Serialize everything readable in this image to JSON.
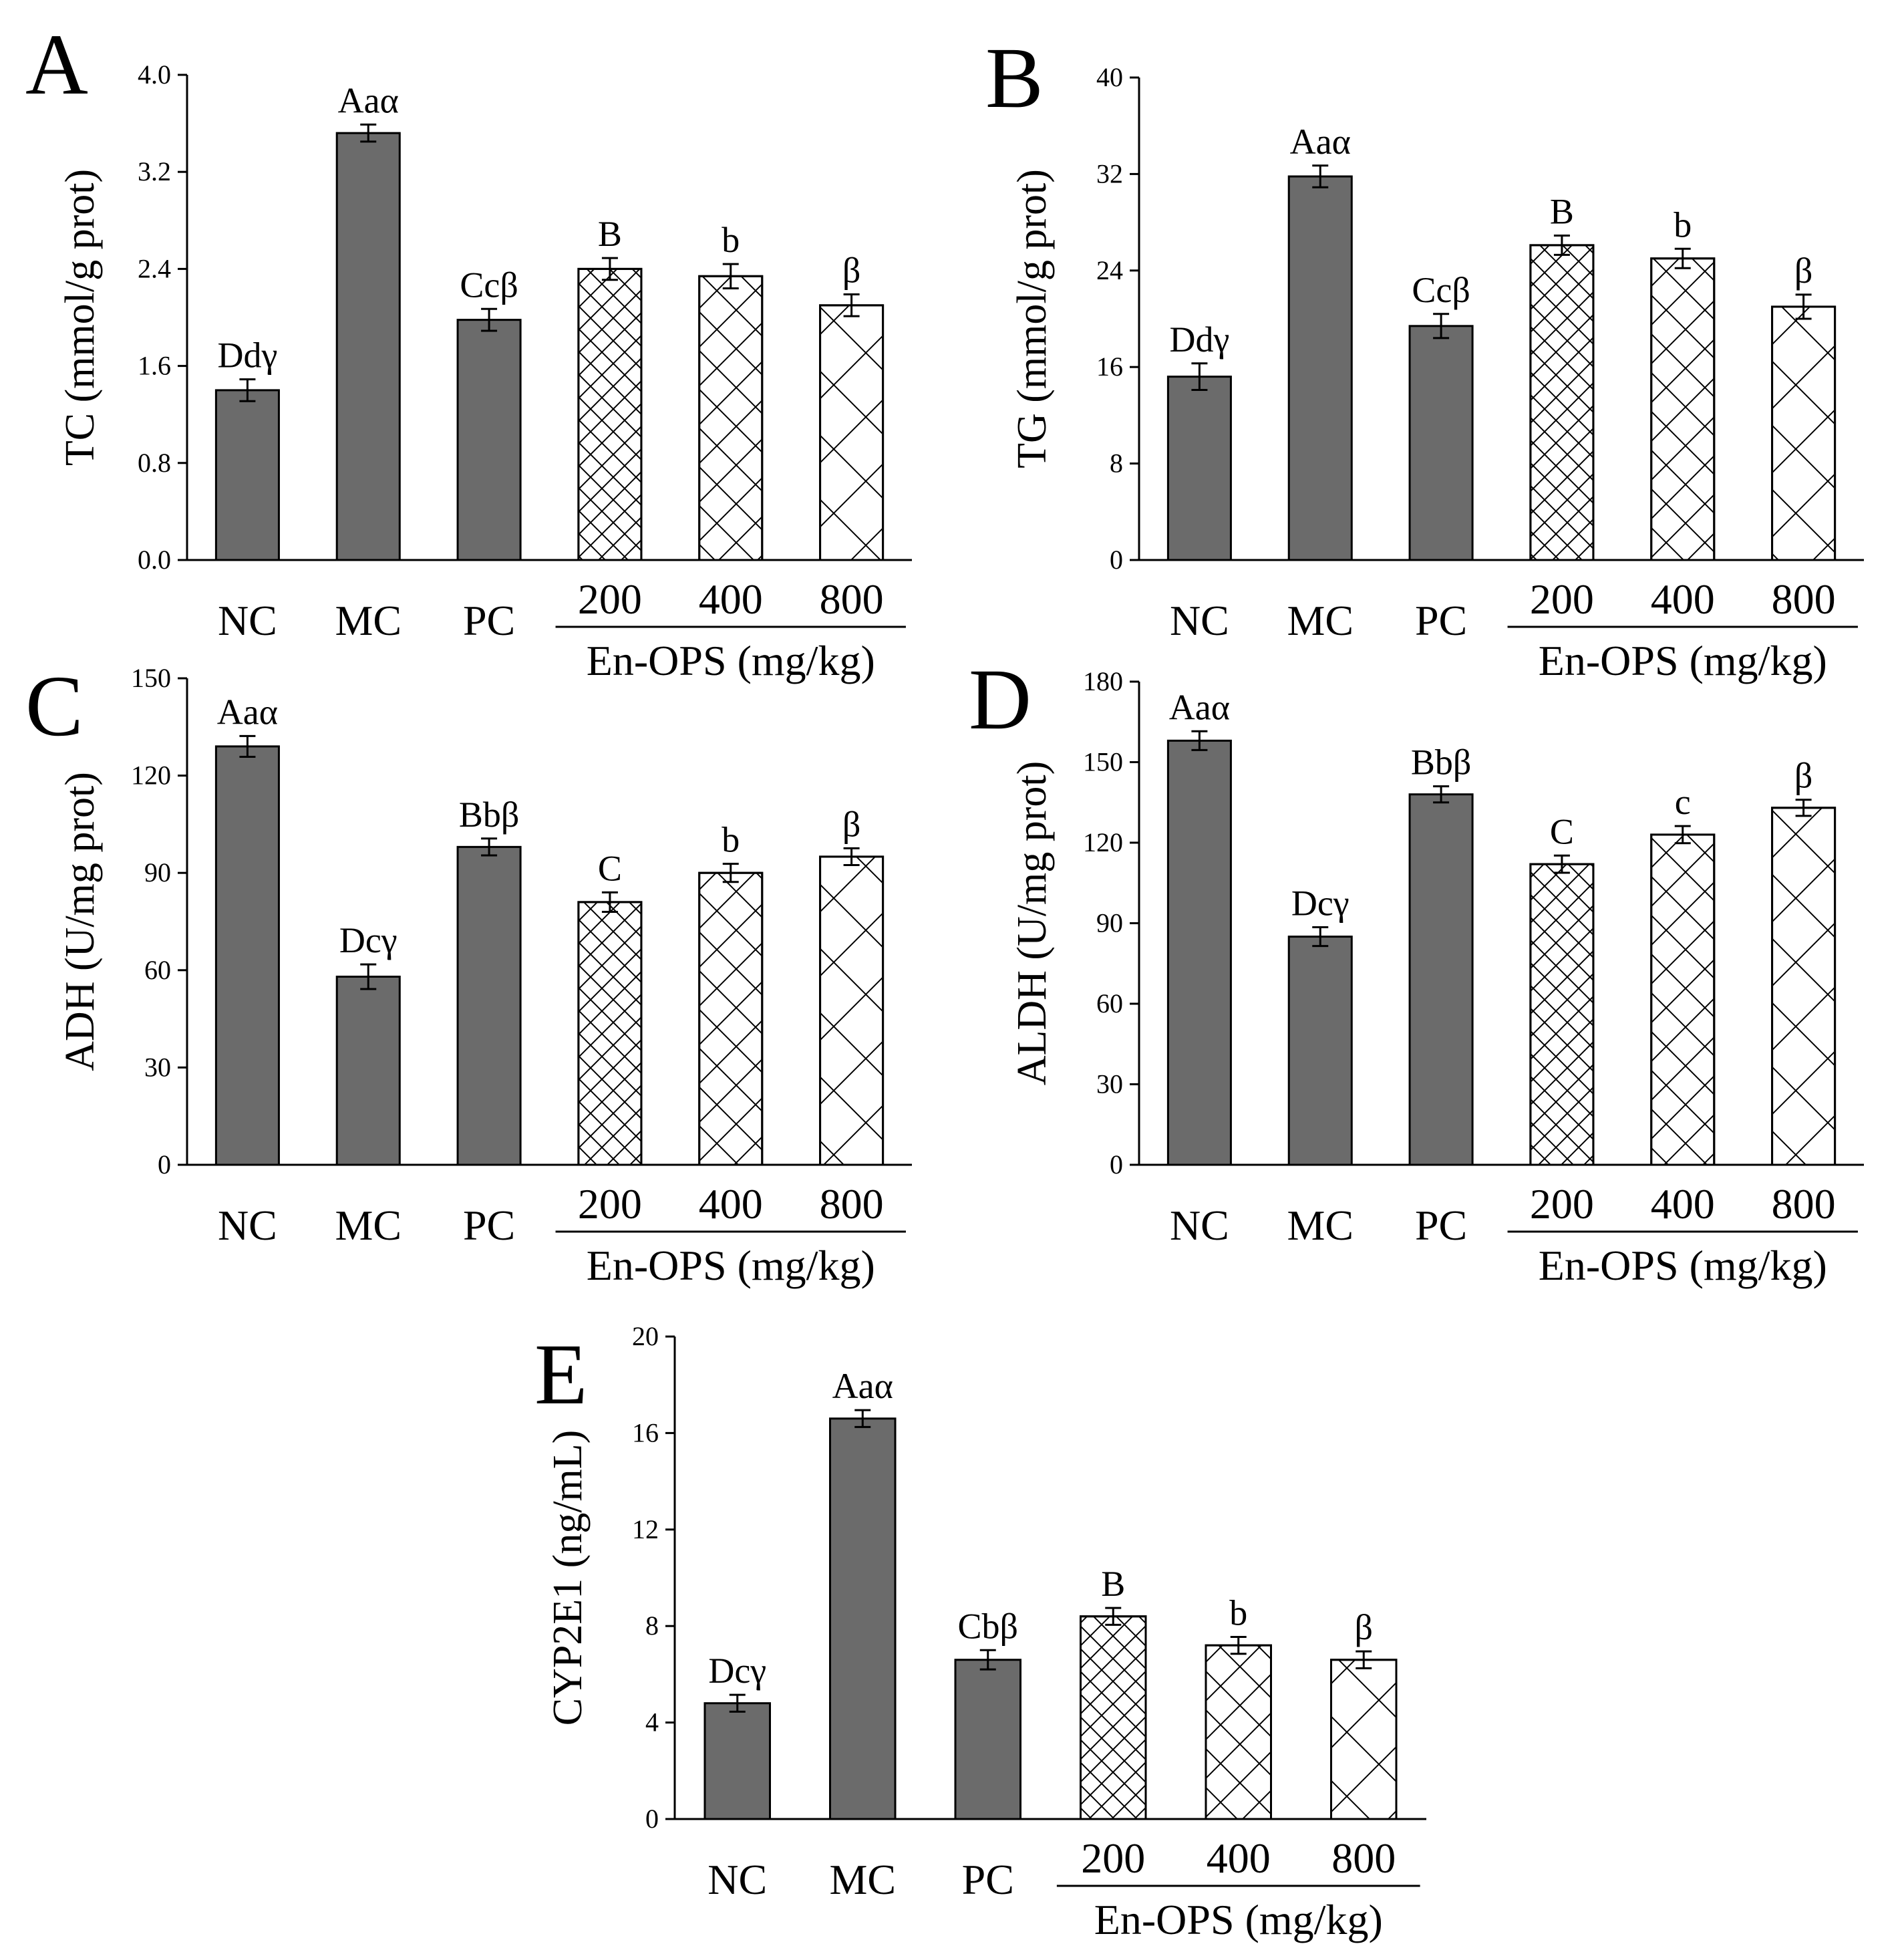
{
  "colors": {
    "solid_bar": "#6b6b6b",
    "outline": "#000000",
    "background": "#ffffff",
    "hatch": "#000000"
  },
  "chart_data": [
    {
      "panel_letter": "A",
      "type": "bar",
      "categories": [
        "NC",
        "MC",
        "PC",
        "200",
        "400",
        "800"
      ],
      "values": [
        1.4,
        3.52,
        1.98,
        2.4,
        2.34,
        2.1
      ],
      "errors": [
        0.09,
        0.07,
        0.09,
        0.09,
        0.1,
        0.09
      ],
      "annotations": [
        "Ddγ",
        "Aaα",
        "Ccβ",
        "B",
        "b",
        "β"
      ],
      "fill_styles": [
        "solid",
        "solid",
        "solid",
        "dense-crosshatch",
        "medium-crosshatch",
        "sparse-crosshatch"
      ],
      "ylabel": "TC (mmol/g prot)",
      "ylim": [
        0,
        4.0
      ],
      "yticks": [
        "0.0",
        "0.8",
        "1.6",
        "2.4",
        "3.2",
        "4.0"
      ],
      "group_label": "En-OPS (mg/kg)"
    },
    {
      "panel_letter": "B",
      "type": "bar",
      "categories": [
        "NC",
        "MC",
        "PC",
        "200",
        "400",
        "800"
      ],
      "values": [
        15.2,
        31.8,
        19.4,
        26.1,
        25.0,
        21.0
      ],
      "errors": [
        1.1,
        0.9,
        1.0,
        0.8,
        0.8,
        1.0
      ],
      "annotations": [
        "Ddγ",
        "Aaα",
        "Ccβ",
        "B",
        "b",
        "β"
      ],
      "fill_styles": [
        "solid",
        "solid",
        "solid",
        "dense-crosshatch",
        "medium-crosshatch",
        "sparse-crosshatch"
      ],
      "ylabel": "TG (mmol/g prot)",
      "ylim": [
        0,
        40
      ],
      "yticks": [
        "0",
        "8",
        "16",
        "24",
        "32",
        "40"
      ],
      "group_label": "En-OPS (mg/kg)"
    },
    {
      "panel_letter": "C",
      "type": "bar",
      "categories": [
        "NC",
        "MC",
        "PC",
        "200",
        "400",
        "800"
      ],
      "values": [
        129,
        58,
        98,
        81,
        90,
        95
      ],
      "errors": [
        3.2,
        3.8,
        2.6,
        3.0,
        2.8,
        2.6
      ],
      "annotations": [
        "Aaα",
        "Dcγ",
        "Bbβ",
        "C",
        "b",
        "β"
      ],
      "fill_styles": [
        "solid",
        "solid",
        "solid",
        "dense-crosshatch",
        "medium-crosshatch",
        "sparse-crosshatch"
      ],
      "ylabel": "ADH (U/mg prot)",
      "ylim": [
        0,
        150
      ],
      "yticks": [
        "0",
        "30",
        "60",
        "90",
        "120",
        "150"
      ],
      "group_label": "En-OPS (mg/kg)"
    },
    {
      "panel_letter": "D",
      "type": "bar",
      "categories": [
        "NC",
        "MC",
        "PC",
        "200",
        "400",
        "800"
      ],
      "values": [
        158,
        85,
        138,
        112,
        123,
        133
      ],
      "errors": [
        3.5,
        3.5,
        3.0,
        3.2,
        3.2,
        3.0
      ],
      "annotations": [
        "Aaα",
        "Dcγ",
        "Bbβ",
        "C",
        "c",
        "β"
      ],
      "fill_styles": [
        "solid",
        "solid",
        "solid",
        "dense-crosshatch",
        "medium-crosshatch",
        "sparse-crosshatch"
      ],
      "ylabel": "ALDH (U/mg prot)",
      "ylim": [
        0,
        180
      ],
      "yticks": [
        "0",
        "30",
        "60",
        "90",
        "120",
        "150",
        "180"
      ],
      "group_label": "En-OPS (mg/kg)"
    },
    {
      "panel_letter": "E",
      "type": "bar",
      "categories": [
        "NC",
        "MC",
        "PC",
        "200",
        "400",
        "800"
      ],
      "values": [
        4.8,
        16.6,
        6.6,
        8.4,
        7.2,
        6.6
      ],
      "errors": [
        0.35,
        0.35,
        0.4,
        0.35,
        0.35,
        0.35
      ],
      "annotations": [
        "Dcγ",
        "Aaα",
        "Cbβ",
        "B",
        "b",
        "β"
      ],
      "fill_styles": [
        "solid",
        "solid",
        "solid",
        "dense-crosshatch",
        "medium-crosshatch",
        "sparse-crosshatch"
      ],
      "ylabel": "CYP2E1 (ng/mL)",
      "ylim": [
        0,
        20
      ],
      "yticks": [
        "0",
        "4",
        "8",
        "12",
        "16",
        "20"
      ],
      "group_label": "En-OPS (mg/kg)"
    }
  ]
}
